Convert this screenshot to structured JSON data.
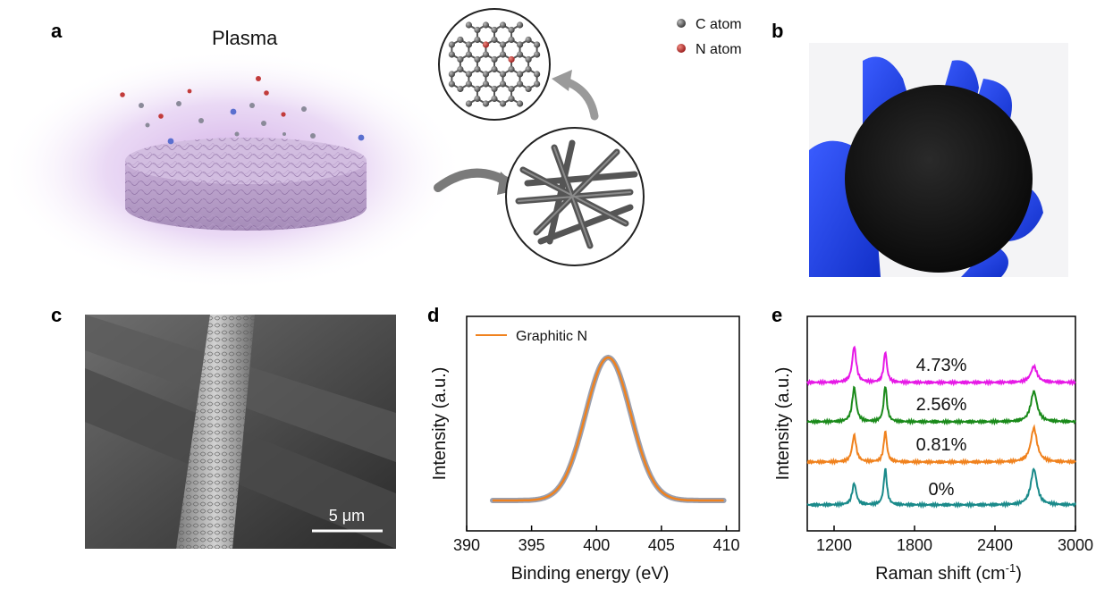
{
  "panels": {
    "a": {
      "letter": "a",
      "plasma_label": "Plasma",
      "legend": [
        {
          "label": "C atom",
          "color": "#6b6b6b"
        },
        {
          "label": "N atom",
          "color": "#c0392b"
        }
      ]
    },
    "b": {
      "letter": "b"
    },
    "c": {
      "letter": "c",
      "scale_bar_label": "5 μm"
    },
    "d": {
      "letter": "d"
    },
    "e": {
      "letter": "e"
    }
  },
  "chart_data": [
    {
      "type": "line",
      "panel": "d",
      "xlabel": "Binding energy (eV)",
      "ylabel": "Intensity (a.u.)",
      "xlim": [
        390,
        411
      ],
      "xticks": [
        390,
        395,
        400,
        405,
        410
      ],
      "series": [
        {
          "name": "Graphitic N",
          "color": "#f0821e",
          "type": "gaussian",
          "center": 400.9,
          "fwhm": 4.1,
          "x_range": [
            392,
            409.8
          ]
        }
      ],
      "legend_position": "top-left"
    },
    {
      "type": "line",
      "panel": "e",
      "xlabel": "Raman shift (cm-1)",
      "xlabel_main": "Raman shift (cm",
      "xlabel_sup": "-1",
      "xlabel_close": ")",
      "ylabel": "Intensity (a.u.)",
      "xlim": [
        1000,
        3000
      ],
      "xticks": [
        1200,
        1800,
        2400,
        3000
      ],
      "peaks": {
        "D": 1350,
        "G": 1582,
        "2D": 2690
      },
      "series": [
        {
          "label": "4.73%",
          "color": "#e619e6",
          "D": 1.0,
          "G": 0.85,
          "2D": 0.45
        },
        {
          "label": "2.56%",
          "color": "#1a8a1a",
          "D": 0.95,
          "G": 1.0,
          "2D": 0.85
        },
        {
          "label": "0.81%",
          "color": "#f0821e",
          "D": 0.75,
          "G": 0.85,
          "2D": 0.95
        },
        {
          "label": "0%",
          "color": "#1a8a8a",
          "D": 0.6,
          "G": 1.0,
          "2D": 1.0
        }
      ]
    }
  ]
}
